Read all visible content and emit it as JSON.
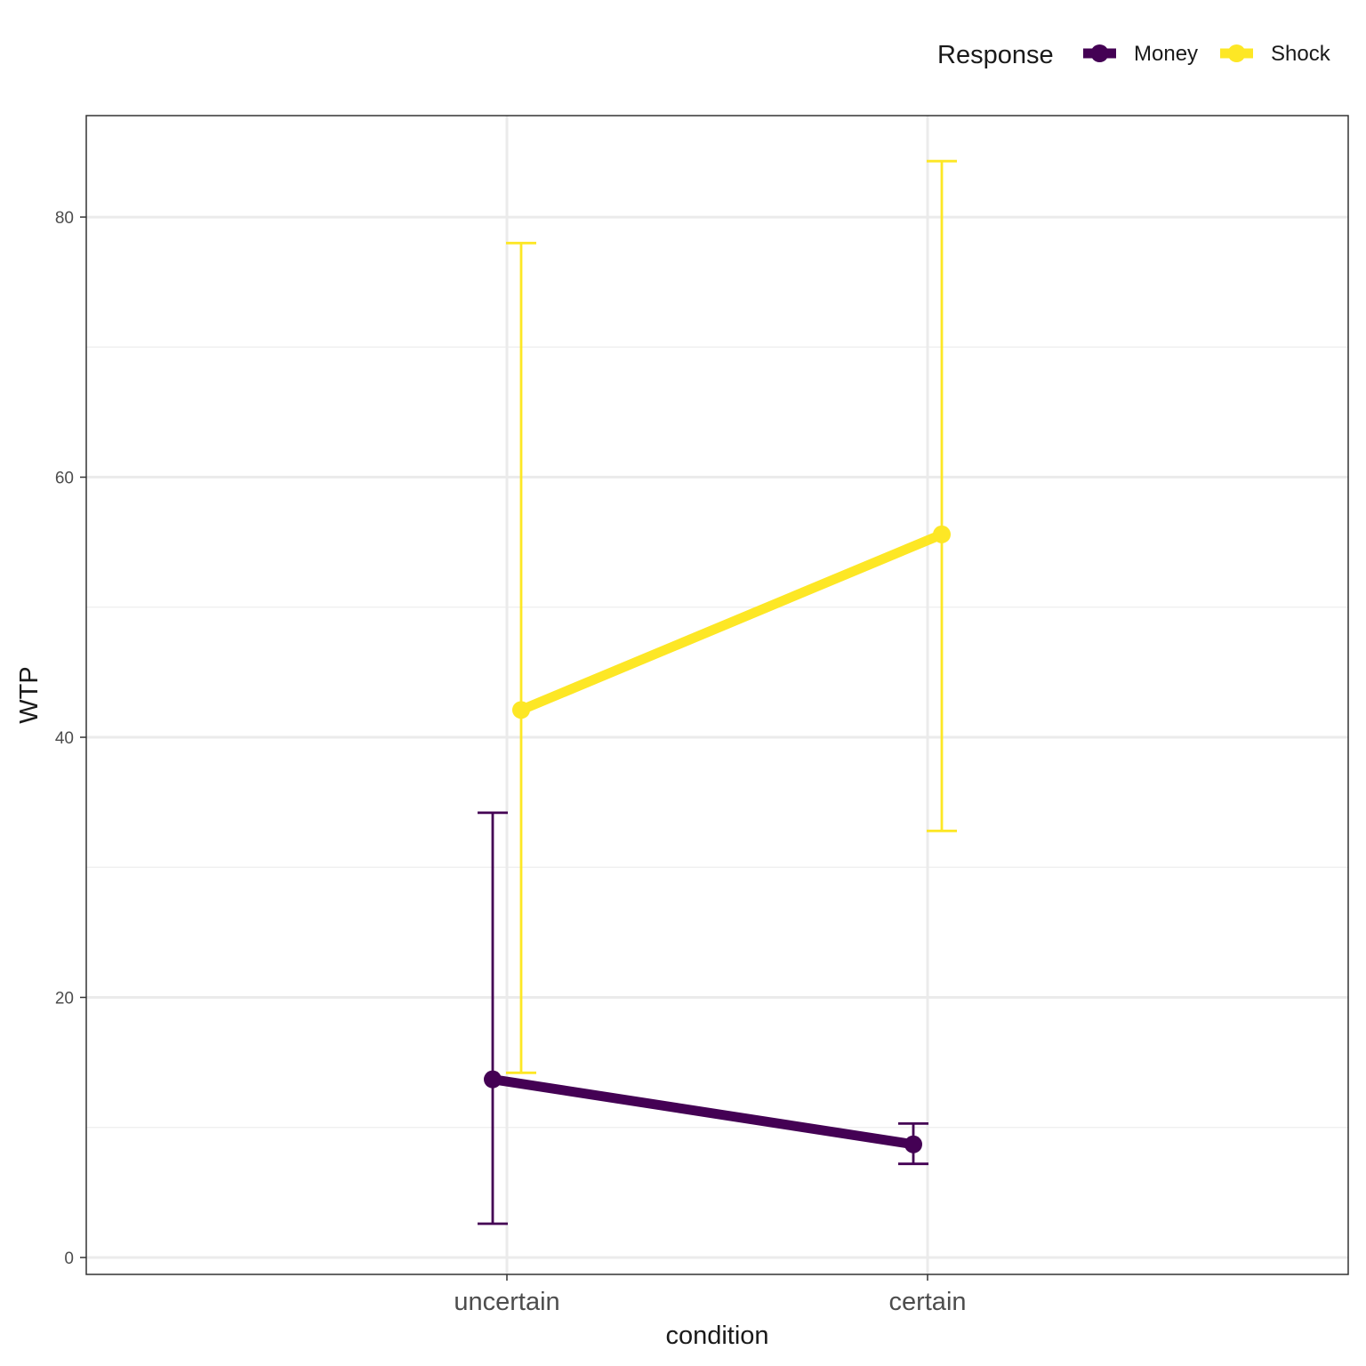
{
  "chart_data": {
    "type": "line",
    "xlabel": "condition",
    "ylabel": "WTP",
    "categories": [
      "uncertain",
      "certain"
    ],
    "ylim": [
      -1.3,
      87.8
    ],
    "y_ticks": [
      "0",
      "20",
      "40",
      "60",
      "80"
    ],
    "grid": true,
    "legend": {
      "title": "Response",
      "position": "top-right"
    },
    "series": [
      {
        "name": "Money",
        "color": "#440154",
        "values": [
          13.7,
          8.7
        ],
        "error_low": [
          2.6,
          7.2
        ],
        "error_high": [
          34.2,
          10.3
        ]
      },
      {
        "name": "Shock",
        "color": "#FDE725",
        "values": [
          42.1,
          55.6
        ],
        "error_low": [
          14.2,
          32.8
        ],
        "error_high": [
          78.0,
          84.3
        ]
      }
    ]
  }
}
